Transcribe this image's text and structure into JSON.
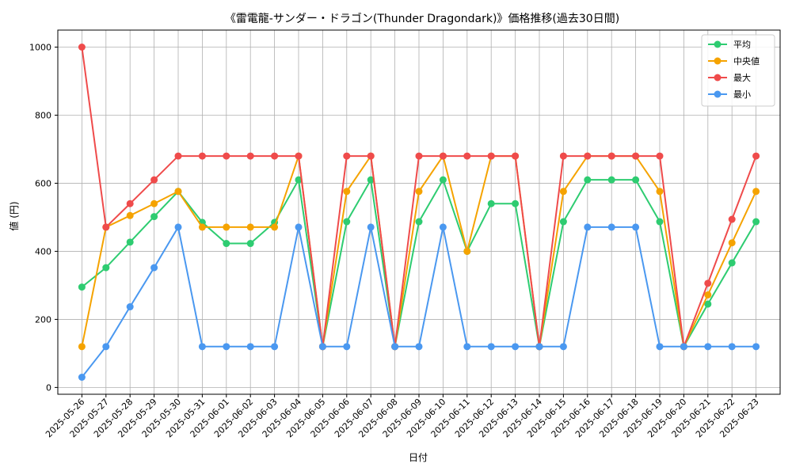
{
  "chart_data": {
    "type": "line",
    "title": "《雷電龍-サンダー・ドラゴン(Thunder Dragondark)》価格推移(過去30日間)",
    "xlabel": "日付",
    "ylabel": "値 (円)",
    "ylim": [
      -20,
      1050
    ],
    "yticks": [
      0,
      200,
      400,
      600,
      800,
      1000
    ],
    "grid": true,
    "legend_position": "top-right",
    "categories": [
      "2025-05-26",
      "2025-05-27",
      "2025-05-28",
      "2025-05-29",
      "2025-05-30",
      "2025-05-31",
      "2025-06-01",
      "2025-06-02",
      "2025-06-03",
      "2025-06-04",
      "2025-06-05",
      "2025-06-06",
      "2025-06-07",
      "2025-06-08",
      "2025-06-09",
      "2025-06-10",
      "2025-06-11",
      "2025-06-12",
      "2025-06-13",
      "2025-06-14",
      "2025-06-15",
      "2025-06-16",
      "2025-06-17",
      "2025-06-18",
      "2025-06-19",
      "2025-06-20",
      "2025-06-21",
      "2025-06-22",
      "2025-06-23"
    ],
    "series": [
      {
        "name": "平均",
        "color": "#2ecc71",
        "values": [
          295,
          352,
          427,
          502,
          576,
          485,
          423,
          423,
          485,
          610,
          120,
          487,
          610,
          120,
          487,
          610,
          400,
          540,
          540,
          120,
          487,
          610,
          610,
          610,
          487,
          120,
          245,
          366,
          487
        ]
      },
      {
        "name": "中央値",
        "color": "#f5a300",
        "values": [
          120,
          471,
          505,
          540,
          576,
          471,
          471,
          471,
          471,
          680,
          120,
          576,
          680,
          120,
          576,
          680,
          400,
          680,
          680,
          120,
          576,
          680,
          680,
          680,
          576,
          120,
          272,
          425,
          576
        ]
      },
      {
        "name": "最大",
        "color": "#ef4b4b",
        "values": [
          1000,
          471,
          540,
          610,
          680,
          680,
          680,
          680,
          680,
          680,
          120,
          680,
          680,
          120,
          680,
          680,
          680,
          680,
          680,
          120,
          680,
          680,
          680,
          680,
          680,
          120,
          306,
          494,
          680
        ]
      },
      {
        "name": "最小",
        "color": "#4a98f0",
        "values": [
          30,
          120,
          237,
          352,
          471,
          120,
          120,
          120,
          120,
          471,
          120,
          120,
          471,
          120,
          120,
          471,
          120,
          120,
          120,
          120,
          120,
          471,
          471,
          471,
          120,
          120,
          120,
          120,
          120
        ]
      }
    ]
  }
}
